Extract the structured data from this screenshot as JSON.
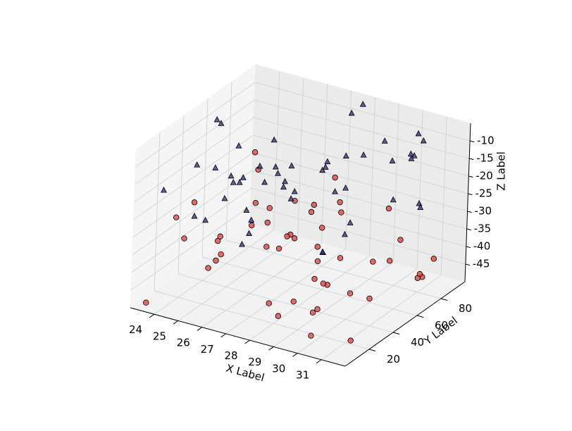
{
  "chart_data": {
    "type": "scatter3d",
    "xlabel": "X Label",
    "ylabel": "Y Label",
    "zlabel": "Z Label",
    "xlim": [
      23,
      32
    ],
    "ylim": [
      0,
      100
    ],
    "zlim": [
      -50,
      -5
    ],
    "xticks": [
      24,
      25,
      26,
      27,
      28,
      29,
      30,
      31
    ],
    "yticks": [
      20,
      40,
      60,
      80
    ],
    "zticks": [
      -45,
      -40,
      -35,
      -30,
      -25,
      -20,
      -15,
      -10
    ],
    "grid": true,
    "series": [
      {
        "color": "#e03a3a",
        "marker": "o",
        "x": [
          26.1,
          24.3,
          29.8,
          30.5,
          27.2,
          23.4,
          31.2,
          28.7,
          25.6,
          27.9,
          30.1,
          24.8,
          29.3,
          26.7,
          31.6,
          28.1,
          23.9,
          25.2,
          30.8,
          27.5,
          29.0,
          26.3,
          24.1,
          31.0,
          28.4,
          25.9,
          30.3,
          27.0,
          23.6,
          29.6,
          26.9,
          24.6,
          31.4,
          28.9,
          25.4,
          30.0,
          27.7,
          23.2,
          29.1,
          26.0,
          31.8,
          28.2,
          24.4,
          30.6,
          27.3,
          25.0,
          29.9,
          26.5,
          23.8,
          31.3
        ],
        "y": [
          12,
          45,
          78,
          33,
          91,
          5,
          60,
          22,
          84,
          51,
          9,
          67,
          38,
          95,
          27,
          73,
          18,
          56,
          88,
          42,
          3,
          64,
          29,
          80,
          47,
          15,
          70,
          36,
          93,
          24,
          58,
          11,
          85,
          40,
          76,
          20,
          62,
          98,
          31,
          53,
          8,
          69,
          44,
          90,
          26,
          75,
          14,
          82,
          49,
          35
        ],
        "z": [
          -32,
          -45,
          -28,
          -40,
          -37,
          -49,
          -30,
          -43,
          -35,
          -26,
          -47,
          -33,
          -41,
          -29,
          -38,
          -44,
          -27,
          -36,
          -48,
          -31,
          -42,
          -39,
          -25,
          -46,
          -34,
          -28,
          -40,
          -50,
          -32,
          -44,
          -37,
          -30,
          -41,
          -26,
          -47,
          -35,
          -43,
          -29,
          -38,
          -33,
          -45,
          -27,
          -39,
          -48,
          -31,
          -36,
          -42,
          -34,
          -49,
          -30
        ]
      },
      {
        "color": "#2b2b7a",
        "marker": "^",
        "x": [
          28.3,
          24.7,
          30.9,
          26.4,
          23.5,
          31.5,
          27.8,
          25.3,
          29.4,
          26.8,
          30.2,
          24.0,
          28.6,
          31.1,
          25.7,
          27.1,
          29.7,
          23.3,
          30.7,
          26.2,
          24.9,
          28.0,
          31.7,
          25.5,
          29.2,
          27.4,
          23.7,
          30.4,
          26.6,
          24.2,
          28.8,
          31.9,
          25.1,
          29.5,
          27.6,
          23.1,
          30.0,
          26.0,
          24.5,
          28.5,
          31.3,
          25.8,
          29.0,
          27.2,
          23.9,
          30.6,
          26.9,
          24.1,
          28.2,
          31.0
        ],
        "y": [
          55,
          17,
          83,
          41,
          72,
          6,
          94,
          30,
          63,
          21,
          87,
          48,
          13,
          77,
          37,
          99,
          25,
          66,
          4,
          52,
          81,
          34,
          59,
          10,
          92,
          43,
          70,
          19,
          86,
          28,
          61,
          2,
          79,
          46,
          68,
          23,
          97,
          39,
          57,
          14,
          74,
          32,
          89,
          7,
          50,
          65,
          16,
          84,
          27,
          71
        ],
        "z": [
          -12,
          -25,
          -8,
          -18,
          -29,
          -15,
          -6,
          -22,
          -10,
          -27,
          -14,
          -20,
          -7,
          -24,
          -17,
          -11,
          -28,
          -13,
          -21,
          -9,
          -26,
          -16,
          -5,
          -23,
          -19,
          -12,
          -30,
          -8,
          -25,
          -14,
          -20,
          -10,
          -27,
          -6,
          -18,
          -22,
          -11,
          -29,
          -15,
          -9,
          -24,
          -17,
          -13,
          -26,
          -7,
          -21,
          -19,
          -28,
          -16,
          -10
        ]
      }
    ]
  }
}
